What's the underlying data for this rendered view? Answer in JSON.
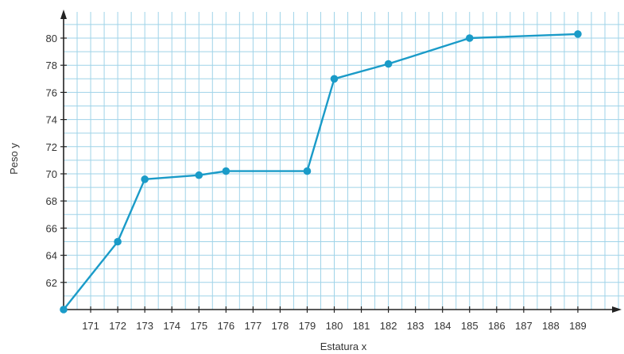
{
  "colors": {
    "series": "#1a9bc8",
    "grid": "#9fd3e8",
    "axis": "#222222"
  },
  "chart_data": {
    "type": "line",
    "title": "",
    "xlabel": "Estatura x",
    "ylabel": "Peso y",
    "xlim": [
      170,
      191
    ],
    "ylim": [
      60,
      82
    ],
    "grid": true,
    "x_ticks": [
      171,
      172,
      173,
      174,
      175,
      176,
      177,
      178,
      179,
      180,
      181,
      182,
      183,
      184,
      185,
      186,
      187,
      188,
      189
    ],
    "x_tick_labels": [
      "171",
      "172",
      "173",
      "174",
      "175",
      "176",
      "177",
      "178",
      "179",
      "180",
      "181",
      "182",
      "183",
      "184",
      "185",
      "186",
      "187",
      "188",
      "189"
    ],
    "y_ticks": [
      62,
      64,
      66,
      68,
      70,
      72,
      74,
      76,
      78,
      80
    ],
    "y_tick_labels": [
      "62",
      "64",
      "66",
      "68",
      "70",
      "72",
      "74",
      "76",
      "78",
      "80"
    ],
    "series": [
      {
        "x": [
          170,
          172,
          173,
          175,
          176,
          179,
          180,
          182,
          185,
          189
        ],
        "y": [
          60,
          65,
          69.6,
          69.9,
          70.2,
          70.2,
          77,
          78.1,
          80,
          80.3
        ]
      }
    ]
  }
}
